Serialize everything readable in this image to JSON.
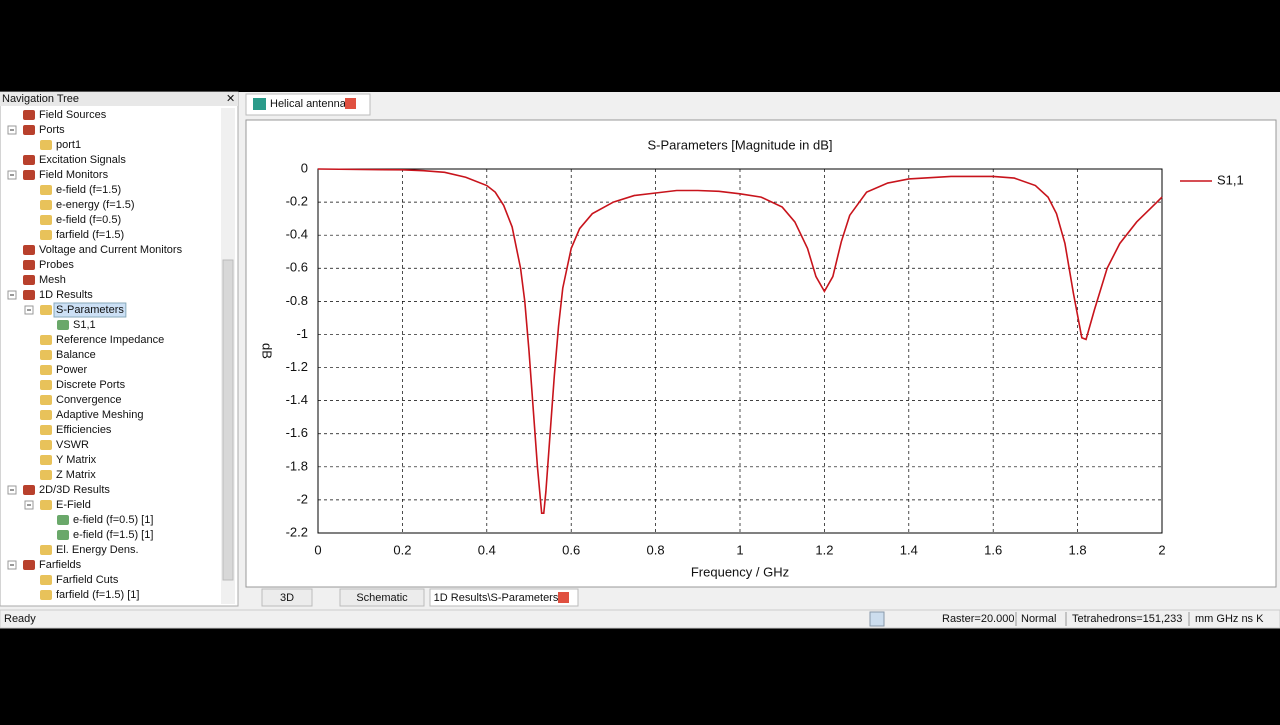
{
  "nav_tree": {
    "title": "Navigation Tree",
    "items": [
      {
        "label": "Field Sources"
      },
      {
        "label": "Ports",
        "children": [
          {
            "label": "port1"
          }
        ]
      },
      {
        "label": "Excitation Signals"
      },
      {
        "label": "Field Monitors",
        "children": [
          {
            "label": "e-field (f=1.5)"
          },
          {
            "label": "e-energy (f=1.5)"
          },
          {
            "label": "e-field (f=0.5)"
          },
          {
            "label": "farfield (f=1.5)"
          }
        ]
      },
      {
        "label": "Voltage and Current Monitors"
      },
      {
        "label": "Probes"
      },
      {
        "label": "Mesh"
      },
      {
        "label": "1D Results",
        "children": [
          {
            "label": "S-Parameters",
            "selected": true,
            "children": [
              {
                "label": "S1,1"
              }
            ]
          },
          {
            "label": "Reference Impedance"
          },
          {
            "label": "Balance"
          },
          {
            "label": "Power"
          },
          {
            "label": "Discrete Ports"
          },
          {
            "label": "Convergence"
          },
          {
            "label": "Adaptive Meshing"
          },
          {
            "label": "Efficiencies"
          },
          {
            "label": "VSWR"
          },
          {
            "label": "Y Matrix"
          },
          {
            "label": "Z Matrix"
          }
        ]
      },
      {
        "label": "2D/3D Results",
        "children": [
          {
            "label": "E-Field",
            "children": [
              {
                "label": "e-field (f=0.5) [1]"
              },
              {
                "label": "e-field (f=1.5) [1]"
              }
            ]
          },
          {
            "label": "El. Energy Dens."
          }
        ]
      },
      {
        "label": "Farfields",
        "children": [
          {
            "label": "Farfield Cuts"
          },
          {
            "label": "farfield (f=1.5) [1]"
          }
        ]
      }
    ]
  },
  "top_tab": "Helical antenna",
  "bottom_tabs": [
    "3D",
    "Schematic",
    "1D Results\\S-Parameters"
  ],
  "status_bar": {
    "left": "Ready",
    "raster": "Raster=20.000",
    "mode": "Normal",
    "mesh": "Tetrahedrons=151,233",
    "units": "mm GHz ns K"
  },
  "chart_data": {
    "type": "line",
    "title": "S-Parameters [Magnitude in dB]",
    "x_label": "Frequency / GHz",
    "y_label": "dB",
    "xlim": [
      0,
      2
    ],
    "ylim": [
      -2.2,
      0
    ],
    "xticks": [
      0,
      0.2,
      0.4,
      0.6,
      0.8,
      1,
      1.2,
      1.4,
      1.6,
      1.8,
      2
    ],
    "yticks": [
      0,
      -0.2,
      -0.4,
      -0.6,
      -0.8,
      -1,
      -1.2,
      -1.4,
      -1.6,
      -1.8,
      -2,
      -2.2
    ],
    "grid": true,
    "legend": "right",
    "x": [
      0,
      0.1,
      0.2,
      0.25,
      0.3,
      0.35,
      0.4,
      0.42,
      0.44,
      0.46,
      0.48,
      0.49,
      0.5,
      0.51,
      0.52,
      0.53,
      0.535,
      0.54,
      0.55,
      0.56,
      0.57,
      0.58,
      0.6,
      0.62,
      0.65,
      0.7,
      0.75,
      0.8,
      0.85,
      0.9,
      0.95,
      1.0,
      1.05,
      1.1,
      1.13,
      1.16,
      1.18,
      1.2,
      1.22,
      1.24,
      1.26,
      1.3,
      1.35,
      1.4,
      1.5,
      1.6,
      1.65,
      1.7,
      1.73,
      1.75,
      1.77,
      1.79,
      1.81,
      1.82,
      1.84,
      1.87,
      1.9,
      1.94,
      1.98,
      2.0
    ],
    "series": [
      {
        "name": "S1,1",
        "color": "#c8141c",
        "values": [
          0,
          -0.003,
          -0.005,
          -0.01,
          -0.02,
          -0.05,
          -0.1,
          -0.14,
          -0.22,
          -0.35,
          -0.6,
          -0.8,
          -1.1,
          -1.45,
          -1.8,
          -2.08,
          -2.08,
          -1.95,
          -1.6,
          -1.25,
          -0.95,
          -0.72,
          -0.48,
          -0.36,
          -0.27,
          -0.2,
          -0.16,
          -0.145,
          -0.13,
          -0.13,
          -0.135,
          -0.15,
          -0.17,
          -0.23,
          -0.32,
          -0.48,
          -0.65,
          -0.74,
          -0.65,
          -0.44,
          -0.28,
          -0.14,
          -0.085,
          -0.06,
          -0.045,
          -0.045,
          -0.055,
          -0.1,
          -0.17,
          -0.27,
          -0.45,
          -0.75,
          -1.02,
          -1.03,
          -0.85,
          -0.6,
          -0.45,
          -0.32,
          -0.22,
          -0.17
        ]
      }
    ]
  }
}
